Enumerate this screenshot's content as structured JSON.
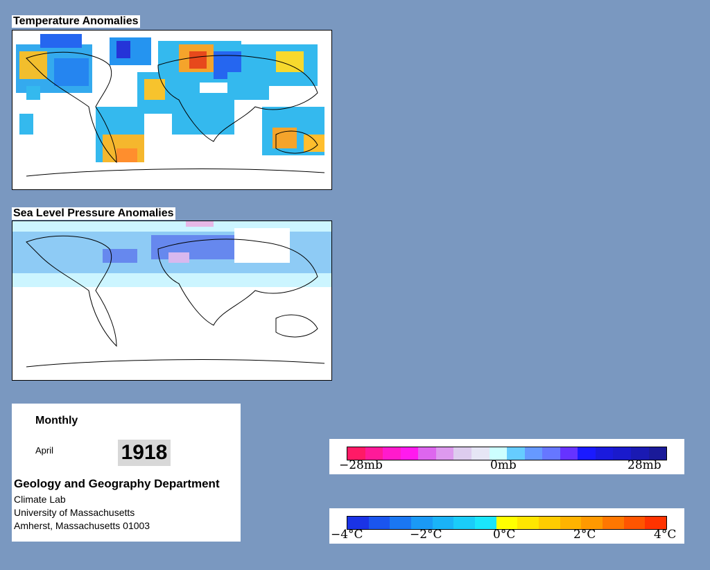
{
  "panels": {
    "temperature": {
      "title": "Temperature Anomalies"
    },
    "pressure": {
      "title": "Sea Level Pressure Anomalies"
    }
  },
  "info": {
    "frequency": "Monthly",
    "month": "April",
    "year": "1918",
    "department": "Geology and Geography Department",
    "lab": "Climate Lab",
    "university": "University of Massachusetts",
    "address": "Amherst, Massachusetts 01003"
  },
  "pressure_scale": {
    "labels": {
      "min": "−28mb",
      "mid": "0mb",
      "max": "28mb"
    },
    "colors": [
      "#ff1a66",
      "#ff1a99",
      "#ff1acc",
      "#ff1aee",
      "#dd66ee",
      "#dd99ee",
      "#ddccee",
      "#e6e6f5",
      "#ccffff",
      "#66ccff",
      "#6699ff",
      "#6677ff",
      "#6633ff",
      "#1a1aff",
      "#1a1add",
      "#1a1acc",
      "#1a1ab3",
      "#1a1a99"
    ]
  },
  "temperature_scale": {
    "labels": {
      "m4": "−4°C",
      "m2": "−2°C",
      "z": "0°C",
      "p2": "2°C",
      "p4": "4°C"
    },
    "colors": [
      "#1a33e6",
      "#1a55ee",
      "#1a77f2",
      "#1a99f5",
      "#1ab3f7",
      "#1accf9",
      "#1ae6fb",
      "#ffff00",
      "#ffe600",
      "#ffcc00",
      "#ffb300",
      "#ff9900",
      "#ff7700",
      "#ff5500",
      "#ff3300"
    ]
  }
}
